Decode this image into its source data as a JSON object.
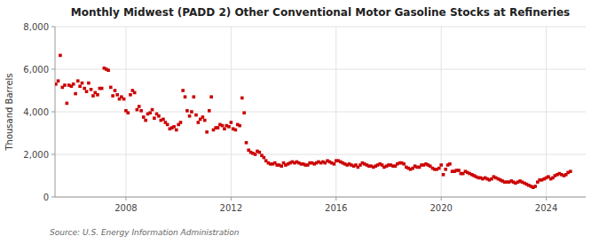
{
  "chart_data": {
    "type": "scatter",
    "title": "Monthly Midwest (PADD 2) Other Conventional Motor Gasoline Stocks at Refineries",
    "y_label": "Thousand Barrels",
    "annotations": [
      "Source: U.S. Energy Information Administration"
    ],
    "color": "#CC0000",
    "marker": "square",
    "grid": true,
    "xlim": [
      2005.3,
      2025.5
    ],
    "xticks": [
      2008,
      2012,
      2016,
      2020,
      2024
    ],
    "ylim": [
      0,
      8000
    ],
    "yticks": [
      0,
      {
        "value": 2000,
        "label": "2,000"
      },
      {
        "value": 4000,
        "label": "4,000"
      },
      {
        "value": 6000,
        "label": "6,000"
      },
      {
        "value": 8000,
        "label": "8,000"
      }
    ],
    "x": [
      2005.33,
      2005.42,
      2005.5,
      2005.58,
      2005.67,
      2005.75,
      2005.83,
      2005.92,
      2006.0,
      2006.08,
      2006.17,
      2006.25,
      2006.33,
      2006.42,
      2006.5,
      2006.58,
      2006.67,
      2006.75,
      2006.83,
      2006.92,
      2007.0,
      2007.08,
      2007.17,
      2007.25,
      2007.33,
      2007.42,
      2007.5,
      2007.58,
      2007.67,
      2007.75,
      2007.83,
      2007.92,
      2008.0,
      2008.08,
      2008.17,
      2008.25,
      2008.33,
      2008.42,
      2008.5,
      2008.58,
      2008.67,
      2008.75,
      2008.83,
      2008.92,
      2009.0,
      2009.08,
      2009.17,
      2009.25,
      2009.33,
      2009.42,
      2009.5,
      2009.58,
      2009.67,
      2009.75,
      2009.83,
      2009.92,
      2010.0,
      2010.08,
      2010.17,
      2010.25,
      2010.33,
      2010.42,
      2010.5,
      2010.58,
      2010.67,
      2010.75,
      2010.83,
      2010.92,
      2011.0,
      2011.08,
      2011.17,
      2011.25,
      2011.33,
      2011.42,
      2011.5,
      2011.58,
      2011.67,
      2011.75,
      2011.83,
      2011.92,
      2012.0,
      2012.08,
      2012.17,
      2012.25,
      2012.33,
      2012.42,
      2012.5,
      2012.58,
      2012.67,
      2012.75,
      2012.83,
      2012.92,
      2013.0,
      2013.08,
      2013.17,
      2013.25,
      2013.33,
      2013.42,
      2013.5,
      2013.58,
      2013.67,
      2013.75,
      2013.83,
      2013.92,
      2014.0,
      2014.08,
      2014.17,
      2014.25,
      2014.33,
      2014.42,
      2014.5,
      2014.58,
      2014.67,
      2014.75,
      2014.83,
      2014.92,
      2015.0,
      2015.08,
      2015.17,
      2015.25,
      2015.33,
      2015.42,
      2015.5,
      2015.58,
      2015.67,
      2015.75,
      2015.83,
      2015.92,
      2016.0,
      2016.08,
      2016.17,
      2016.25,
      2016.33,
      2016.42,
      2016.5,
      2016.58,
      2016.67,
      2016.75,
      2016.83,
      2016.92,
      2017.0,
      2017.08,
      2017.17,
      2017.25,
      2017.33,
      2017.42,
      2017.5,
      2017.58,
      2017.67,
      2017.75,
      2017.83,
      2017.92,
      2018.0,
      2018.08,
      2018.17,
      2018.25,
      2018.33,
      2018.42,
      2018.5,
      2018.58,
      2018.67,
      2018.75,
      2018.83,
      2018.92,
      2019.0,
      2019.08,
      2019.17,
      2019.25,
      2019.33,
      2019.42,
      2019.5,
      2019.58,
      2019.67,
      2019.75,
      2019.83,
      2019.92,
      2020.0,
      2020.08,
      2020.17,
      2020.25,
      2020.33,
      2020.42,
      2020.5,
      2020.58,
      2020.67,
      2020.75,
      2020.83,
      2020.92,
      2021.0,
      2021.08,
      2021.17,
      2021.25,
      2021.33,
      2021.42,
      2021.5,
      2021.58,
      2021.67,
      2021.75,
      2021.83,
      2021.92,
      2022.0,
      2022.08,
      2022.17,
      2022.25,
      2022.33,
      2022.42,
      2022.5,
      2022.58,
      2022.67,
      2022.75,
      2022.83,
      2022.92,
      2023.0,
      2023.08,
      2023.17,
      2023.25,
      2023.33,
      2023.42,
      2023.5,
      2023.58,
      2023.67,
      2023.75,
      2023.83,
      2023.92,
      2024.0,
      2024.08,
      2024.17,
      2024.25,
      2024.33,
      2024.42,
      2024.5,
      2024.58,
      2024.67,
      2024.75,
      2024.83,
      2024.92
    ],
    "values": [
      5300,
      5450,
      6650,
      5150,
      5250,
      4400,
      5250,
      5200,
      5300,
      4850,
      5450,
      5200,
      5350,
      5100,
      4950,
      5350,
      5050,
      4750,
      4900,
      4800,
      5100,
      5100,
      6050,
      6000,
      5950,
      5150,
      4750,
      5000,
      4800,
      4600,
      4700,
      4600,
      4050,
      3950,
      4800,
      5000,
      4900,
      4100,
      4250,
      4050,
      3750,
      3600,
      3900,
      3950,
      4100,
      3700,
      3900,
      3800,
      3600,
      3650,
      3500,
      3400,
      3200,
      3250,
      3300,
      3150,
      3400,
      3500,
      5000,
      4700,
      4050,
      3800,
      4000,
      4700,
      3850,
      3500,
      3650,
      3750,
      3600,
      3050,
      4050,
      4700,
      3150,
      3250,
      3250,
      3400,
      3350,
      3200,
      3350,
      3300,
      3500,
      3200,
      3150,
      3400,
      3350,
      4650,
      3950,
      2550,
      2200,
      2100,
      2050,
      2000,
      2150,
      2100,
      1950,
      1850,
      1700,
      1600,
      1550,
      1550,
      1600,
      1500,
      1500,
      1450,
      1600,
      1500,
      1550,
      1600,
      1650,
      1600,
      1650,
      1600,
      1550,
      1550,
      1500,
      1500,
      1600,
      1600,
      1550,
      1600,
      1650,
      1600,
      1650,
      1600,
      1700,
      1650,
      1600,
      1550,
      1700,
      1700,
      1650,
      1600,
      1550,
      1500,
      1550,
      1500,
      1450,
      1500,
      1400,
      1500,
      1600,
      1550,
      1500,
      1450,
      1450,
      1400,
      1450,
      1500,
      1550,
      1500,
      1400,
      1450,
      1500,
      1500,
      1450,
      1450,
      1550,
      1600,
      1600,
      1550,
      1400,
      1350,
      1300,
      1350,
      1450,
      1400,
      1400,
      1500,
      1500,
      1550,
      1500,
      1450,
      1350,
      1300,
      1300,
      1350,
      1500,
      1050,
      1300,
      1500,
      1550,
      1200,
      1200,
      1250,
      1250,
      1100,
      1100,
      1200,
      1150,
      1100,
      1050,
      1000,
      950,
      900,
      900,
      850,
      900,
      850,
      800,
      850,
      950,
      900,
      850,
      800,
      750,
      700,
      700,
      700,
      750,
      700,
      650,
      700,
      750,
      700,
      650,
      600,
      550,
      500,
      450,
      500,
      700,
      800,
      800,
      850,
      900,
      950,
      850,
      900,
      1000,
      1050,
      1100,
      1050,
      1000,
      1050,
      1150,
      1200
    ]
  }
}
